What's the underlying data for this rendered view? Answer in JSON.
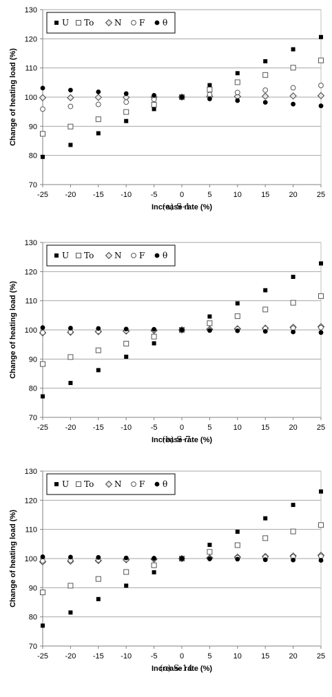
{
  "chart_data": [
    {
      "type": "scatter",
      "caption": "(a) S-1",
      "xlabel": "Increase rate (%)",
      "ylabel": "Change of heating load (%)",
      "xlim": [
        -25,
        25
      ],
      "ylim": [
        70,
        130
      ],
      "x_ticks": [
        -25,
        -20,
        -15,
        -10,
        -5,
        0,
        5,
        10,
        15,
        20,
        25
      ],
      "y_ticks": [
        70,
        80,
        90,
        100,
        110,
        120,
        130
      ],
      "grid": "horizontal",
      "legend_position": "top-left",
      "x": [
        -25,
        -20,
        -15,
        -10,
        -5,
        0,
        5,
        10,
        15,
        20,
        25
      ],
      "series": [
        {
          "name": "U",
          "marker": "filled-square",
          "values": [
            79.5,
            83.6,
            87.6,
            91.8,
            95.9,
            100,
            104.1,
            108.2,
            112.3,
            116.4,
            120.6
          ]
        },
        {
          "name": "To",
          "marker": "open-square",
          "values": [
            87.4,
            89.9,
            92.4,
            94.9,
            97.4,
            100,
            102.6,
            105.1,
            107.6,
            110.1,
            112.6
          ]
        },
        {
          "name": "N",
          "marker": "open-diamond",
          "values": [
            99.8,
            99.8,
            99.9,
            99.9,
            100,
            100,
            100.2,
            100.2,
            100.3,
            100.4,
            100.5
          ]
        },
        {
          "name": "F",
          "marker": "open-circle",
          "values": [
            95.9,
            96.8,
            97.5,
            98.3,
            99.2,
            100,
            100.9,
            101.6,
            102.4,
            103.2,
            104.0
          ]
        },
        {
          "name": "θ",
          "marker": "filled-circle",
          "values": [
            103.1,
            102.4,
            101.8,
            101.2,
            100.6,
            100,
            99.4,
            98.8,
            98.2,
            97.6,
            97.0
          ]
        }
      ]
    },
    {
      "type": "scatter",
      "caption": "(b) S-7",
      "xlabel": "Increase rate (%)",
      "ylabel": "Change of heating load (%)",
      "xlim": [
        -25,
        25
      ],
      "ylim": [
        70,
        130
      ],
      "x_ticks": [
        -25,
        -20,
        -15,
        -10,
        -5,
        0,
        5,
        10,
        15,
        20,
        25
      ],
      "y_ticks": [
        70,
        80,
        90,
        100,
        110,
        120,
        130
      ],
      "grid": "horizontal",
      "legend_position": "top-left",
      "x": [
        -25,
        -20,
        -15,
        -10,
        -5,
        0,
        5,
        10,
        15,
        20,
        25
      ],
      "series": [
        {
          "name": "U",
          "marker": "filled-square",
          "values": [
            77.2,
            81.8,
            86.2,
            90.8,
            95.4,
            100,
            104.6,
            109.1,
            113.6,
            118.2,
            122.8
          ]
        },
        {
          "name": "To",
          "marker": "open-square",
          "values": [
            88.3,
            90.7,
            93.0,
            95.3,
            97.7,
            100,
            102.3,
            104.7,
            107.0,
            109.3,
            111.6
          ]
        },
        {
          "name": "N",
          "marker": "open-diamond",
          "values": [
            99.0,
            99.2,
            99.4,
            99.6,
            99.8,
            100,
            100.2,
            100.4,
            100.6,
            100.9,
            101.1
          ]
        },
        {
          "name": "F",
          "marker": "open-circle",
          "values": [
            99.1,
            99.3,
            99.5,
            99.7,
            99.9,
            100,
            100.1,
            100.3,
            100.5,
            100.6,
            100.8
          ]
        },
        {
          "name": "θ",
          "marker": "filled-circle",
          "values": [
            100.8,
            100.6,
            100.5,
            100.3,
            100.2,
            100,
            99.8,
            99.7,
            99.5,
            99.3,
            99.1
          ]
        }
      ]
    },
    {
      "type": "scatter",
      "caption": "(c) S-14",
      "xlabel": "Increase rate (%)",
      "ylabel": "Change of heating load (%)",
      "xlim": [
        -25,
        25
      ],
      "ylim": [
        70,
        130
      ],
      "x_ticks": [
        -25,
        -20,
        -15,
        -10,
        -5,
        0,
        5,
        10,
        15,
        20,
        25
      ],
      "y_ticks": [
        70,
        80,
        90,
        100,
        110,
        120,
        130
      ],
      "grid": "horizontal",
      "legend_position": "top-left",
      "x": [
        -25,
        -20,
        -15,
        -10,
        -5,
        0,
        5,
        10,
        15,
        20,
        25
      ],
      "series": [
        {
          "name": "U",
          "marker": "filled-square",
          "values": [
            77.0,
            81.5,
            86.1,
            90.7,
            95.3,
            100,
            104.7,
            109.2,
            113.8,
            118.4,
            123.0
          ]
        },
        {
          "name": "To",
          "marker": "open-square",
          "values": [
            88.4,
            90.7,
            93.0,
            95.4,
            97.7,
            100,
            102.3,
            104.6,
            107.0,
            109.3,
            111.5
          ]
        },
        {
          "name": "N",
          "marker": "open-diamond",
          "values": [
            98.9,
            99.1,
            99.3,
            99.6,
            99.8,
            100,
            100.2,
            100.5,
            100.7,
            100.9,
            101.1
          ]
        },
        {
          "name": "F",
          "marker": "open-circle",
          "values": [
            99.2,
            99.4,
            99.5,
            99.7,
            99.9,
            100,
            100.1,
            100.3,
            100.5,
            100.6,
            100.8
          ]
        },
        {
          "name": "θ",
          "marker": "filled-circle",
          "values": [
            100.6,
            100.5,
            100.4,
            100.2,
            100.1,
            100,
            99.9,
            99.8,
            99.6,
            99.5,
            99.4
          ]
        }
      ]
    }
  ]
}
